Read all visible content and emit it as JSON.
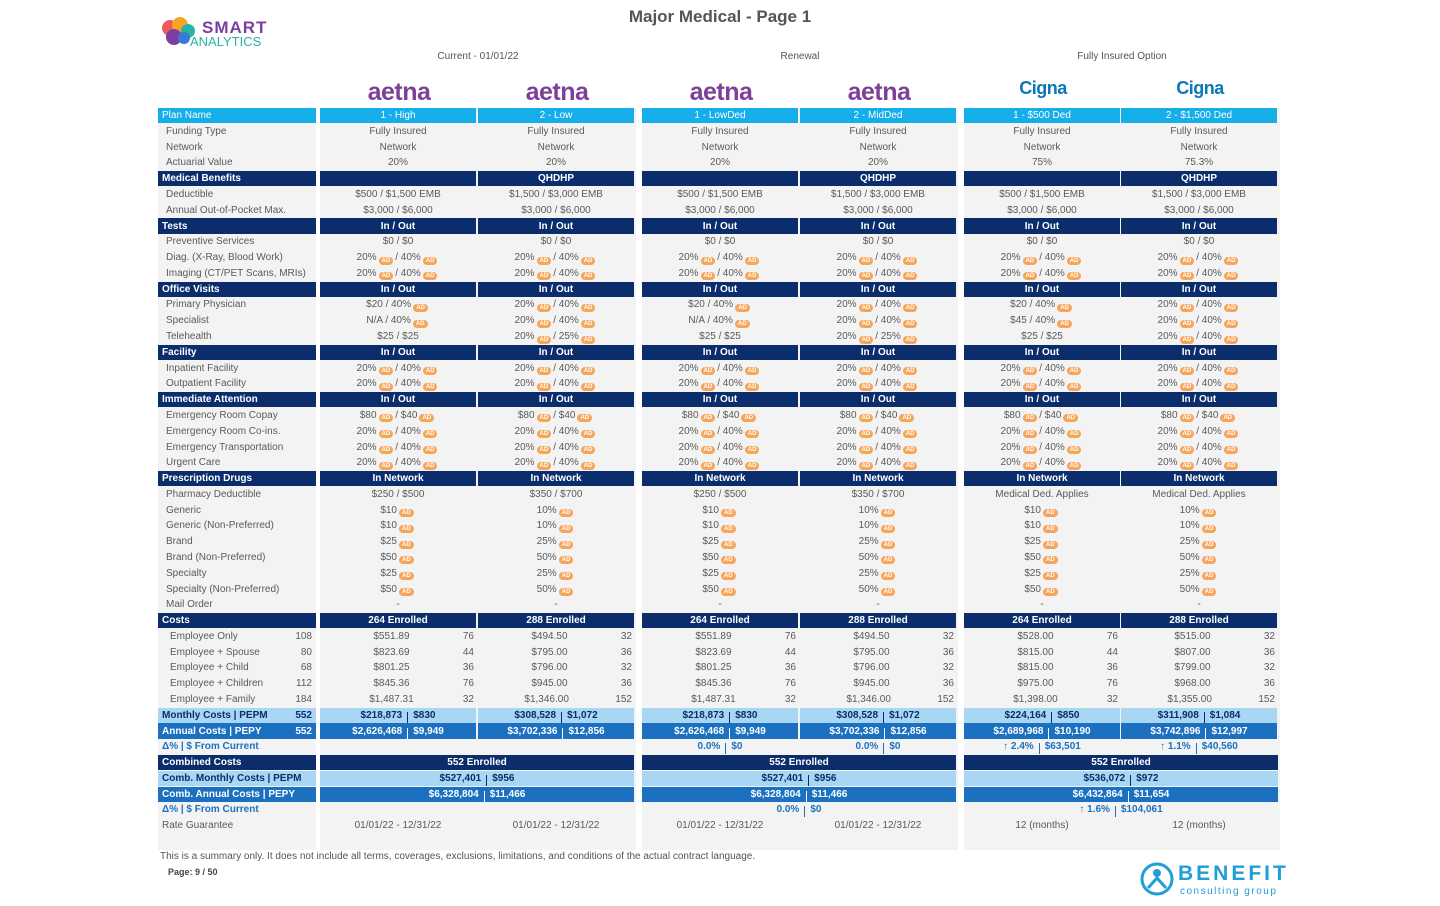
{
  "header": {
    "title": "Major Medical - Page 1",
    "logo_top": "SMART",
    "logo_bottom": "ANALYTICS"
  },
  "groups": [
    "Current - 01/01/22",
    "Renewal",
    "Fully Insured Option"
  ],
  "carriers": [
    {
      "name": "aetna",
      "color": "#7d3f98"
    },
    {
      "name": "aetna",
      "color": "#7d3f98"
    },
    {
      "name": "aetna",
      "color": "#7d3f98"
    },
    {
      "name": "aetna",
      "color": "#7d3f98"
    },
    {
      "name": "Cigna",
      "color": "#0a78b5"
    },
    {
      "name": "Cigna",
      "color": "#0a78b5"
    }
  ],
  "plan_label": "Plan Name",
  "plans": [
    "1 - High",
    "2 - Low",
    "1 - LowDed",
    "2 - MidDed",
    "1 - $500 Ded",
    "2 - $1,500 Ded"
  ],
  "badge": "AD",
  "sections": [
    {
      "rows": [
        {
          "label": "Funding Type",
          "cells": [
            "Fully Insured",
            "Fully Insured",
            "Fully Insured",
            "Fully Insured",
            "Fully Insured",
            "Fully Insured"
          ]
        },
        {
          "label": "Network",
          "cells": [
            "Network",
            "Network",
            "Network",
            "Network",
            "Network",
            "Network"
          ]
        },
        {
          "label": "Actuarial Value",
          "cells": [
            "20%",
            "20%",
            "20%",
            "20%",
            "75%",
            "75.3%"
          ]
        }
      ]
    },
    {
      "title": "Medical Benefits",
      "heads": [
        null,
        "QHDHP",
        null,
        "QHDHP",
        null,
        "QHDHP"
      ],
      "rows": [
        {
          "label": "Deductible",
          "cells": [
            "$500 / $1,500 EMB",
            "$1,500 / $3,000 EMB",
            "$500 / $1,500 EMB",
            "$1,500 / $3,000 EMB",
            "$500 / $1,500 EMB",
            "$1,500 / $3,000 EMB"
          ]
        },
        {
          "label": "Annual Out-of-Pocket Max.",
          "cells": [
            "$3,000 / $6,000",
            "$3,000 / $6,000",
            "$3,000 / $6,000",
            "$3,000 / $6,000",
            "$3,000 / $6,000",
            "$3,000 / $6,000"
          ]
        }
      ]
    },
    {
      "title": "Tests",
      "heads": [
        "In / Out",
        "In / Out",
        "In / Out",
        "In / Out",
        "In / Out",
        "In / Out"
      ],
      "rows": [
        {
          "label": "Preventive Services",
          "cells": [
            "$0 / $0",
            "$0 / $0",
            "$0 / $0",
            "$0 / $0",
            "$0 / $0",
            "$0 / $0"
          ]
        },
        {
          "label": "Diag. (X-Ray, Blood Work)",
          "cells": [
            [
              "20%",
              "/ 40%"
            ],
            [
              "20%",
              "/ 40%"
            ],
            [
              "20%",
              "/ 40%"
            ],
            [
              "20%",
              "/ 40%"
            ],
            [
              "20%",
              "/ 40%"
            ],
            [
              "20%",
              "/ 40%"
            ]
          ]
        },
        {
          "label": "Imaging (CT/PET Scans, MRIs)",
          "cells": [
            [
              "20%",
              "/ 40%"
            ],
            [
              "20%",
              "/ 40%"
            ],
            [
              "20%",
              "/ 40%"
            ],
            [
              "20%",
              "/ 40%"
            ],
            [
              "20%",
              "/ 40%"
            ],
            [
              "20%",
              "/ 40%"
            ]
          ]
        }
      ]
    },
    {
      "title": "Office Visits",
      "heads": [
        "In / Out",
        "In / Out",
        "In / Out",
        "In / Out",
        "In / Out",
        "In / Out"
      ],
      "rows": [
        {
          "label": "Primary Physician",
          "cells": [
            [
              "$20 / 40%"
            ],
            [
              "20%",
              "/ 40%"
            ],
            [
              "$20 / 40%"
            ],
            [
              "20%",
              "/ 40%"
            ],
            [
              "$20 / 40%"
            ],
            [
              "20%",
              "/ 40%"
            ]
          ]
        },
        {
          "label": "Specialist",
          "cells": [
            [
              "N/A / 40%"
            ],
            [
              "20%",
              "/ 40%"
            ],
            [
              "N/A / 40%"
            ],
            [
              "20%",
              "/ 40%"
            ],
            [
              "$45 / 40%"
            ],
            [
              "20%",
              "/ 40%"
            ]
          ]
        },
        {
          "label": "Telehealth",
          "cells": [
            "$25 / $25",
            [
              "20%",
              "/ 25%"
            ],
            "$25 / $25",
            [
              "20%",
              "/ 25%"
            ],
            "$25 / $25",
            [
              "20%",
              "/ 40%"
            ]
          ]
        }
      ]
    },
    {
      "title": "Facility",
      "heads": [
        "In / Out",
        "In / Out",
        "In / Out",
        "In / Out",
        "In / Out",
        "In / Out"
      ],
      "rows": [
        {
          "label": "Inpatient Facility",
          "cells": [
            [
              "20%",
              "/ 40%"
            ],
            [
              "20%",
              "/ 40%"
            ],
            [
              "20%",
              "/ 40%"
            ],
            [
              "20%",
              "/ 40%"
            ],
            [
              "20%",
              "/ 40%"
            ],
            [
              "20%",
              "/ 40%"
            ]
          ]
        },
        {
          "label": "Outpatient Facility",
          "cells": [
            [
              "20%",
              "/ 40%"
            ],
            [
              "20%",
              "/ 40%"
            ],
            [
              "20%",
              "/ 40%"
            ],
            [
              "20%",
              "/ 40%"
            ],
            [
              "20%",
              "/ 40%"
            ],
            [
              "20%",
              "/ 40%"
            ]
          ]
        }
      ]
    },
    {
      "title": "Immediate Attention",
      "heads": [
        "In / Out",
        "In / Out",
        "In / Out",
        "In / Out",
        "In / Out",
        "In / Out"
      ],
      "rows": [
        {
          "label": "Emergency Room Copay",
          "cells": [
            [
              "$80",
              "/ $40"
            ],
            [
              "$80",
              "/ $40"
            ],
            [
              "$80",
              "/ $40"
            ],
            [
              "$80",
              "/ $40"
            ],
            [
              "$80",
              "/ $40"
            ],
            [
              "$80",
              "/ $40"
            ]
          ]
        },
        {
          "label": "Emergency Room Co-ins.",
          "cells": [
            [
              "20%",
              "/ 40%"
            ],
            [
              "20%",
              "/ 40%"
            ],
            [
              "20%",
              "/ 40%"
            ],
            [
              "20%",
              "/ 40%"
            ],
            [
              "20%",
              "/ 40%"
            ],
            [
              "20%",
              "/ 40%"
            ]
          ]
        },
        {
          "label": "Emergency Transportation",
          "cells": [
            [
              "20%",
              "/ 40%"
            ],
            [
              "20%",
              "/ 40%"
            ],
            [
              "20%",
              "/ 40%"
            ],
            [
              "20%",
              "/ 40%"
            ],
            [
              "20%",
              "/ 40%"
            ],
            [
              "20%",
              "/ 40%"
            ]
          ]
        },
        {
          "label": "Urgent Care",
          "cells": [
            [
              "20%",
              "/ 40%"
            ],
            [
              "20%",
              "/ 40%"
            ],
            [
              "20%",
              "/ 40%"
            ],
            [
              "20%",
              "/ 40%"
            ],
            [
              "20%",
              "/ 40%"
            ],
            [
              "20%",
              "/ 40%"
            ]
          ]
        }
      ]
    },
    {
      "title": "Prescription Drugs",
      "heads": [
        "In Network",
        "In Network",
        "In Network",
        "In Network",
        "In Network",
        "In Network"
      ],
      "rows": [
        {
          "label": "Pharmacy Deductible",
          "cells": [
            "$250 / $500",
            "$350 / $700",
            "$250 / $500",
            "$350 / $700",
            "Medical Ded. Applies",
            "Medical Ded. Applies"
          ]
        },
        {
          "label": "Generic",
          "cells": [
            [
              "$10"
            ],
            [
              "10%"
            ],
            [
              "$10"
            ],
            [
              "10%"
            ],
            [
              "$10"
            ],
            [
              "10%"
            ]
          ]
        },
        {
          "label": "Generic (Non-Preferred)",
          "cells": [
            [
              "$10"
            ],
            [
              "10%"
            ],
            [
              "$10"
            ],
            [
              "10%"
            ],
            [
              "$10"
            ],
            [
              "10%"
            ]
          ]
        },
        {
          "label": "Brand",
          "cells": [
            [
              "$25"
            ],
            [
              "25%"
            ],
            [
              "$25"
            ],
            [
              "25%"
            ],
            [
              "$25"
            ],
            [
              "25%"
            ]
          ]
        },
        {
          "label": "Brand (Non-Preferred)",
          "cells": [
            [
              "$50"
            ],
            [
              "50%"
            ],
            [
              "$50"
            ],
            [
              "50%"
            ],
            [
              "$50"
            ],
            [
              "50%"
            ]
          ]
        },
        {
          "label": "Specialty",
          "cells": [
            [
              "$25"
            ],
            [
              "25%"
            ],
            [
              "$25"
            ],
            [
              "25%"
            ],
            [
              "$25"
            ],
            [
              "25%"
            ]
          ]
        },
        {
          "label": "Specialty (Non-Preferred)",
          "cells": [
            [
              "$50"
            ],
            [
              "50%"
            ],
            [
              "$50"
            ],
            [
              "50%"
            ],
            [
              "$50"
            ],
            [
              "50%"
            ]
          ]
        },
        {
          "label": "Mail Order",
          "cells": [
            "-",
            "-",
            "-",
            "-",
            "-",
            "-"
          ]
        }
      ]
    },
    {
      "title": "Costs",
      "heads": [
        "264 Enrolled",
        "288 Enrolled",
        "264 Enrolled",
        "288 Enrolled",
        "264 Enrolled",
        "288 Enrolled"
      ],
      "rows": [
        {
          "label": "Employee Only",
          "total": 108,
          "cells": [
            [
              "$551.89",
              76
            ],
            [
              "$494.50",
              32
            ],
            [
              "$551.89",
              76
            ],
            [
              "$494.50",
              32
            ],
            [
              "$528.00",
              76
            ],
            [
              "$515.00",
              32
            ]
          ]
        },
        {
          "label": "Employee + Spouse",
          "total": 80,
          "cells": [
            [
              "$823.69",
              44
            ],
            [
              "$795.00",
              36
            ],
            [
              "$823.69",
              44
            ],
            [
              "$795.00",
              36
            ],
            [
              "$815.00",
              44
            ],
            [
              "$807.00",
              36
            ]
          ]
        },
        {
          "label": "Employee + Child",
          "total": 68,
          "cells": [
            [
              "$801.25",
              36
            ],
            [
              "$796.00",
              32
            ],
            [
              "$801.25",
              36
            ],
            [
              "$796.00",
              32
            ],
            [
              "$815.00",
              36
            ],
            [
              "$799.00",
              32
            ]
          ]
        },
        {
          "label": "Employee + Children",
          "total": 112,
          "cells": [
            [
              "$845.36",
              76
            ],
            [
              "$945.00",
              36
            ],
            [
              "$845.36",
              76
            ],
            [
              "$945.00",
              36
            ],
            [
              "$975.00",
              76
            ],
            [
              "$968.00",
              36
            ]
          ]
        },
        {
          "label": "Employee + Family",
          "total": 184,
          "cells": [
            [
              "$1,487.31",
              32
            ],
            [
              "$1,346.00",
              152
            ],
            [
              "$1,487.31",
              32
            ],
            [
              "$1,346.00",
              152
            ],
            [
              "$1,398.00",
              32
            ],
            [
              "$1,355.00",
              152
            ]
          ]
        }
      ]
    }
  ],
  "summary": [
    {
      "label": "Monthly Costs | PEPM",
      "total": 552,
      "cells": [
        [
          "$218,873",
          "$830"
        ],
        [
          "$308,528",
          "$1,072"
        ],
        [
          "$218,873",
          "$830"
        ],
        [
          "$308,528",
          "$1,072"
        ],
        [
          "$224,164",
          "$850"
        ],
        [
          "$311,908",
          "$1,084"
        ]
      ]
    },
    {
      "label": "Annual Costs | PEPY",
      "total": 552,
      "cells": [
        [
          "$2,626,468",
          "$9,949"
        ],
        [
          "$3,702,336",
          "$12,856"
        ],
        [
          "$2,626,468",
          "$9,949"
        ],
        [
          "$3,702,336",
          "$12,856"
        ],
        [
          "$2,689,968",
          "$10,190"
        ],
        [
          "$3,742,896",
          "$12,997"
        ]
      ]
    },
    {
      "label": "Δ% | $ From Current",
      "cells": [
        null,
        null,
        [
          "0.0%",
          "$0"
        ],
        [
          "0.0%",
          "$0"
        ],
        [
          "↑ 2.4%",
          "$63,501"
        ],
        [
          "↑ 1.1%",
          "$40,560"
        ]
      ]
    }
  ],
  "combined": {
    "title": "Combined Costs",
    "heads": [
      "552 Enrolled",
      "552 Enrolled",
      "552 Enrolled"
    ],
    "rows": [
      {
        "label": "Comb. Monthly Costs | PEPM",
        "cells": [
          [
            "$527,401",
            "$956"
          ],
          [
            "$527,401",
            "$956"
          ],
          [
            "$536,072",
            "$972"
          ]
        ]
      },
      {
        "label": "Comb. Annual Costs | PEPY",
        "cells": [
          [
            "$6,328,804",
            "$11,466"
          ],
          [
            "$6,328,804",
            "$11,466"
          ],
          [
            "$6,432,864",
            "$11,654"
          ]
        ]
      },
      {
        "label": "Δ% | $ From Current",
        "cells": [
          null,
          [
            "0.0%",
            "$0"
          ],
          [
            "↑ 1.6%",
            "$104,061"
          ]
        ]
      }
    ]
  },
  "rate": {
    "label": "Rate Guarantee",
    "cells": [
      "01/01/22 - 12/31/22",
      "01/01/22 - 12/31/22",
      "01/01/22 - 12/31/22",
      "01/01/22 - 12/31/22",
      "12 (months)",
      "12 (months)"
    ]
  },
  "footer": {
    "disclaimer": "This is a summary only. It does not include all terms, coverages, exclusions, limitations, and conditions of the actual contract language.",
    "page": "Page: 9 / 50",
    "logo_top": "BENEFIT",
    "logo_bottom": "consulting group"
  }
}
